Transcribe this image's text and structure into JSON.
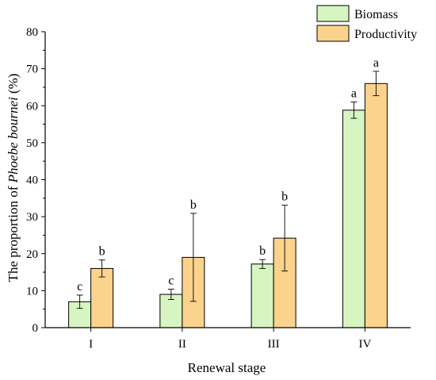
{
  "chart_data": {
    "type": "bar",
    "xlabel": "Renewal stage",
    "ylabel_prefix": "The proportion of ",
    "ylabel_italic": "Phoebe bournei",
    "ylabel_suffix": " (%)",
    "ylim": [
      0,
      80
    ],
    "yticks": [
      0,
      10,
      20,
      30,
      40,
      50,
      60,
      70,
      80
    ],
    "categories": [
      "I",
      "II",
      "III",
      "IV"
    ],
    "legend_position": "top-right",
    "grid": false,
    "series": [
      {
        "name": "Biomass",
        "color": "#d6f5c1",
        "values": [
          7.0,
          9.0,
          17.2,
          58.8
        ],
        "errors": [
          1.8,
          1.4,
          1.2,
          2.2
        ],
        "labels": [
          "c",
          "c",
          "b",
          "a"
        ]
      },
      {
        "name": "Productivity",
        "color": "#fcd38d",
        "values": [
          16.0,
          19.0,
          24.2,
          66.0
        ],
        "errors": [
          2.3,
          11.9,
          8.9,
          3.3
        ],
        "labels": [
          "b",
          "b",
          "b",
          "a"
        ]
      }
    ]
  }
}
